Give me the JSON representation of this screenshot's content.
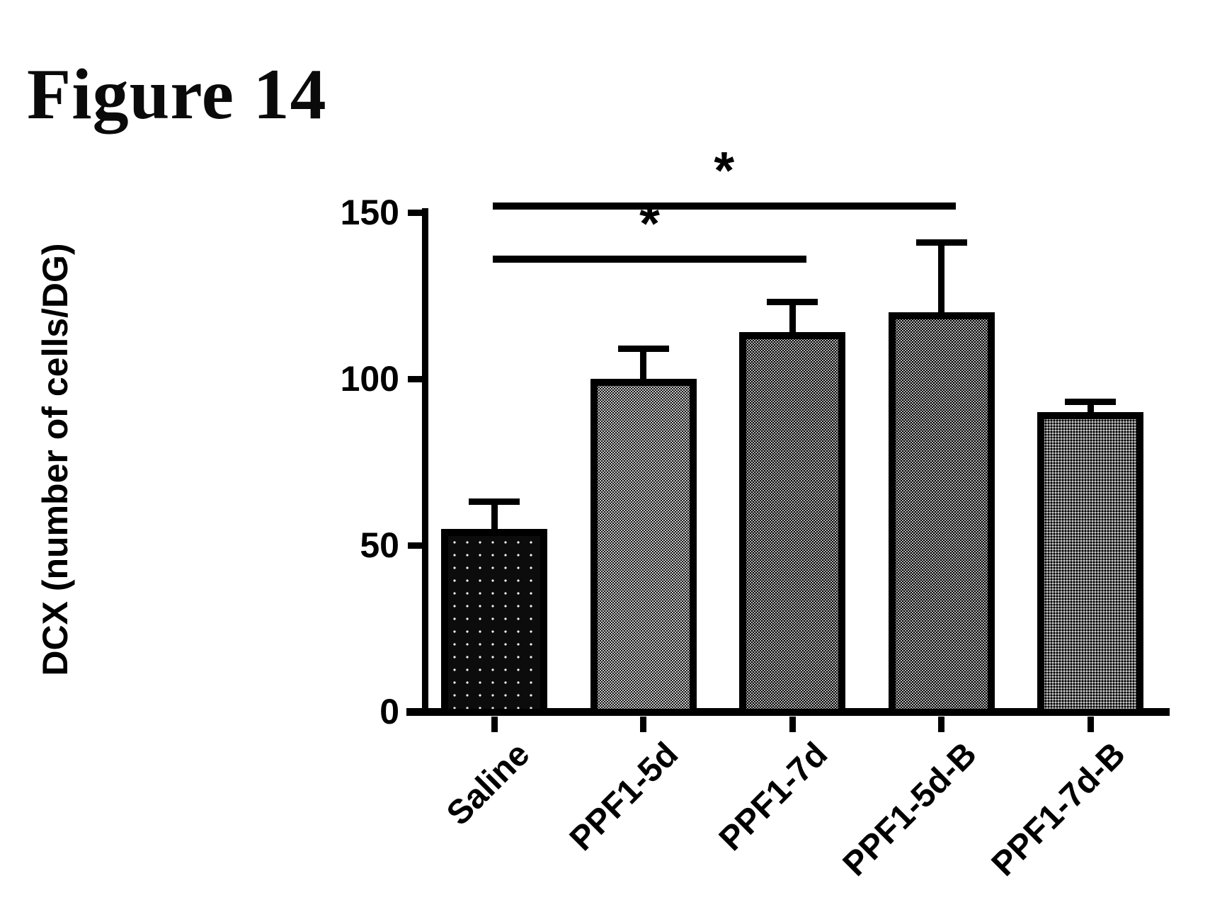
{
  "figure": {
    "title": "Figure 14"
  },
  "chart_data": {
    "type": "bar",
    "title": "Figure 14",
    "ylabel": "DCX (number of cells/DG)",
    "xlabel": "",
    "ylim": [
      0,
      150
    ],
    "yticks": [
      0,
      50,
      100,
      150
    ],
    "grid": false,
    "legend": "none",
    "categories": [
      "Saline",
      "PPF1-5d",
      "PPF1-7d",
      "PPF1-5d-B",
      "PPF1-7d-B"
    ],
    "values": [
      55,
      100,
      114,
      120,
      90
    ],
    "errors_plus": [
      9,
      10,
      10,
      22,
      4
    ],
    "bar_fills": [
      "black-speckle",
      "gray-light",
      "gray-medium",
      "gray-medium",
      "gray-dark"
    ],
    "significance": [
      {
        "from": "Saline",
        "to": "PPF1-7d",
        "label": "*",
        "y": 136
      },
      {
        "from": "Saline",
        "to": "PPF1-5d-B",
        "label": "*",
        "y": 152
      }
    ],
    "colors": {
      "ink": "#000000",
      "background": "#ffffff",
      "bar_black": "#0c0c0c",
      "bar_gray_light": "#b8b8b8",
      "bar_gray_medium": "#a8a8a8",
      "bar_gray_dark": "#8a8a8a"
    }
  }
}
